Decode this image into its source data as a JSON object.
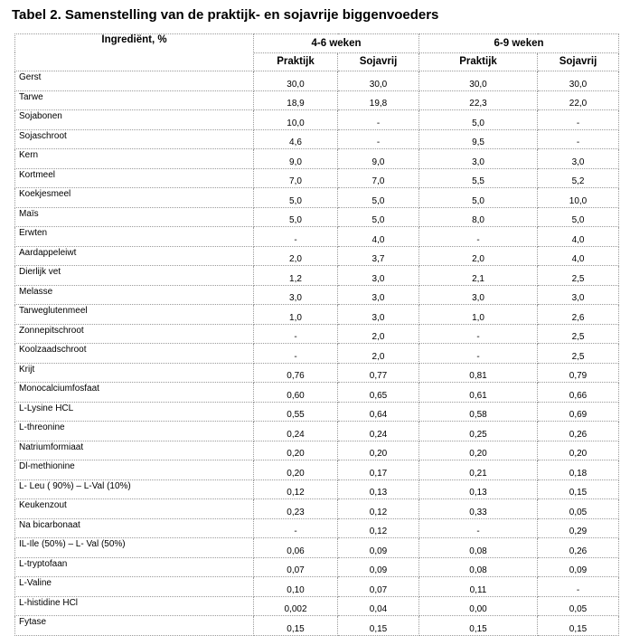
{
  "title": "Tabel 2. Samenstelling van de praktijk- en sojavrije biggenvoeders",
  "header": {
    "ingredient": "Ingrediënt, %",
    "group1": "4-6 weken",
    "group2": "6-9 weken",
    "sub1": "Praktijk",
    "sub2": "Sojavrij",
    "sub3": "Praktijk",
    "sub4": "Sojavrij"
  },
  "rows": [
    {
      "ingredient": "Gerst",
      "values": [
        "30,0",
        "30,0",
        "30,0",
        "30,0"
      ]
    },
    {
      "ingredient": "Tarwe",
      "values": [
        "18,9",
        "19,8",
        "22,3",
        "22,0"
      ]
    },
    {
      "ingredient": "Sojabonen",
      "values": [
        "10,0",
        "-",
        "5,0",
        "-"
      ]
    },
    {
      "ingredient": "Sojaschroot",
      "values": [
        "4,6",
        "-",
        "9,5",
        "-"
      ]
    },
    {
      "ingredient": "Kern",
      "values": [
        "9,0",
        "9,0",
        "3,0",
        "3,0"
      ]
    },
    {
      "ingredient": "Kortmeel",
      "values": [
        "7,0",
        "7,0",
        "5,5",
        "5,2"
      ]
    },
    {
      "ingredient": "Koekjesmeel",
      "values": [
        "5,0",
        "5,0",
        "5,0",
        "10,0"
      ]
    },
    {
      "ingredient": "Maïs",
      "values": [
        "5,0",
        "5,0",
        "8,0",
        "5,0"
      ]
    },
    {
      "ingredient": "Erwten",
      "values": [
        "-",
        "4,0",
        "-",
        "4,0"
      ]
    },
    {
      "ingredient": "Aardappeleiwt",
      "values": [
        "2,0",
        "3,7",
        "2,0",
        "4,0"
      ]
    },
    {
      "ingredient": "Dierlijk vet",
      "values": [
        "1,2",
        "3,0",
        "2,1",
        "2,5"
      ]
    },
    {
      "ingredient": "Melasse",
      "values": [
        "3,0",
        "3,0",
        "3,0",
        "3,0"
      ]
    },
    {
      "ingredient": "Tarweglutenmeel",
      "values": [
        "1,0",
        "3,0",
        "1,0",
        "2,6"
      ]
    },
    {
      "ingredient": "Zonnepitschroot",
      "values": [
        "-",
        "2,0",
        "-",
        "2,5"
      ]
    },
    {
      "ingredient": "Koolzaadschroot",
      "values": [
        "-",
        "2,0",
        "-",
        "2,5"
      ]
    },
    {
      "ingredient": "Krijt",
      "values": [
        "0,76",
        "0,77",
        "0,81",
        "0,79"
      ]
    },
    {
      "ingredient": "Monocalciumfosfaat",
      "values": [
        "0,60",
        "0,65",
        "0,61",
        "0,66"
      ]
    },
    {
      "ingredient": "L-Lysine HCL",
      "values": [
        "0,55",
        "0,64",
        "0,58",
        "0,69"
      ]
    },
    {
      "ingredient": "L-threonine",
      "values": [
        "0,24",
        "0,24",
        "0,25",
        "0,26"
      ]
    },
    {
      "ingredient": "Natriumformiaat",
      "values": [
        "0,20",
        "0,20",
        "0,20",
        "0,20"
      ]
    },
    {
      "ingredient": "Dl-methionine",
      "values": [
        "0,20",
        "0,17",
        "0,21",
        "0,18"
      ]
    },
    {
      "ingredient": "L- Leu ( 90%) – L-Val (10%)",
      "values": [
        "0,12",
        "0,13",
        "0,13",
        "0,15"
      ]
    },
    {
      "ingredient": "Keukenzout",
      "values": [
        "0,23",
        "0,12",
        "0,33",
        "0,05"
      ]
    },
    {
      "ingredient": "Na bicarbonaat",
      "values": [
        "-",
        "0,12",
        "-",
        "0,29"
      ]
    },
    {
      "ingredient": "IL-Ile (50%) – L- Val (50%)",
      "values": [
        "0,06",
        "0,09",
        "0,08",
        "0,26"
      ]
    },
    {
      "ingredient": "L-tryptofaan",
      "values": [
        "0,07",
        "0,09",
        "0,08",
        "0,09"
      ]
    },
    {
      "ingredient": "L-Valine",
      "values": [
        "0,10",
        "0,07",
        "0,11",
        "-"
      ]
    },
    {
      "ingredient": "L-histidine HCl",
      "values": [
        "0,002",
        "0,04",
        "0,00",
        "0,05"
      ]
    },
    {
      "ingredient": "Fytase",
      "values": [
        "0,15",
        "0,15",
        "0,15",
        "0,15"
      ]
    }
  ]
}
